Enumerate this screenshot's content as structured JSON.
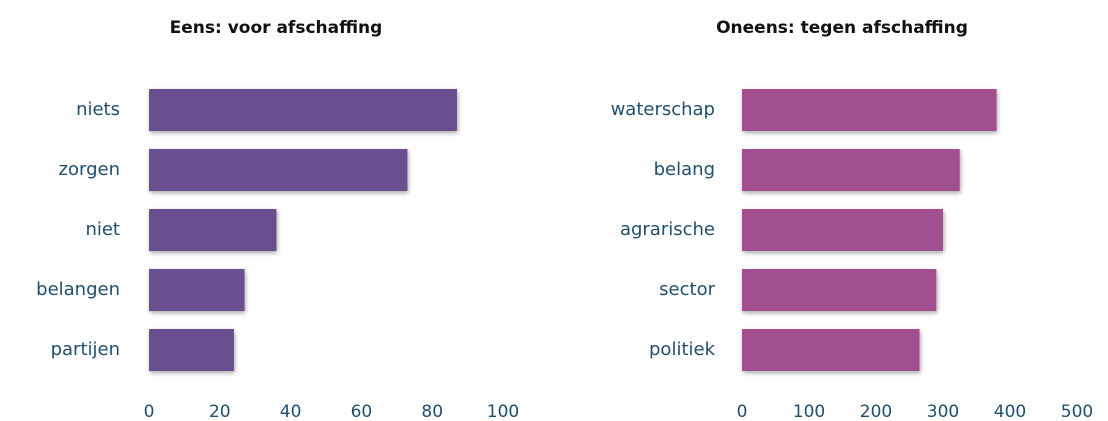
{
  "chart_data": [
    {
      "type": "bar",
      "orientation": "horizontal",
      "title": "Eens: voor afschaffing",
      "categories": [
        "niets",
        "zorgen",
        "niet",
        "belangen",
        "partijen"
      ],
      "values": [
        87,
        73,
        36,
        27,
        24
      ],
      "color": "#6a4f8f",
      "xlim": [
        0,
        100
      ],
      "xticks": [
        0,
        20,
        40,
        60,
        80,
        100
      ],
      "grid": false
    },
    {
      "type": "bar",
      "orientation": "horizontal",
      "title": "Oneens: tegen afschaffing",
      "categories": [
        "waterschap",
        "belang",
        "agrarische",
        "sector",
        "politiek"
      ],
      "values": [
        380,
        325,
        300,
        290,
        265
      ],
      "color": "#a2508f",
      "xlim": [
        0,
        500
      ],
      "xticks": [
        0,
        100,
        200,
        300,
        400,
        500
      ],
      "grid": false
    }
  ]
}
